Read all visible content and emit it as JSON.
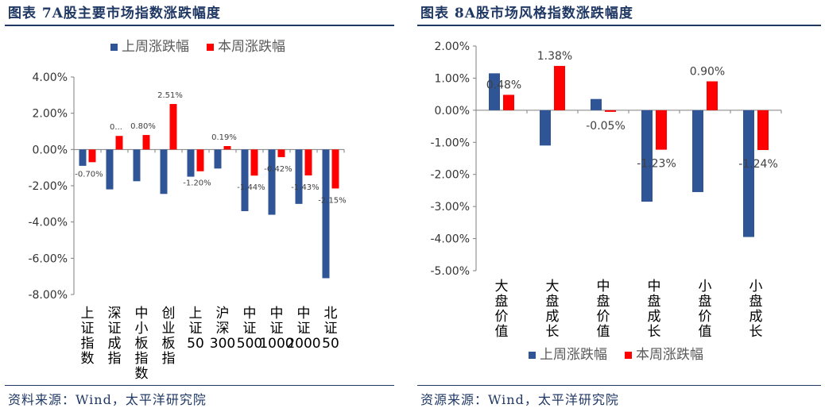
{
  "figures": [
    {
      "title": "图表 7A股主要市场指数涨跌幅度",
      "source": "资料来源：Wind，太平洋研究院"
    },
    {
      "title": "图表 8A股市场风格指数涨跌幅度",
      "source": "资源来源：Wind，太平洋研究院"
    }
  ],
  "chart_data": [
    {
      "type": "bar",
      "categories": [
        "上证指数",
        "深证成指",
        "中小板指数",
        "创业板指",
        "上证50",
        "沪深300",
        "中证500",
        "中证1000",
        "中证2000",
        "北证50"
      ],
      "series": [
        {
          "name": "上周涨跌幅",
          "values": [
            -0.9,
            -2.2,
            -1.75,
            -2.45,
            -1.5,
            -1.05,
            -3.4,
            -3.6,
            -3.0,
            -7.1
          ],
          "color": "#2f5597"
        },
        {
          "name": "本周涨跌幅",
          "values": [
            -0.7,
            0.75,
            0.8,
            2.51,
            -1.2,
            0.19,
            -1.44,
            -0.42,
            -1.43,
            -2.15
          ],
          "color": "#ff0000"
        }
      ],
      "data_labels": [
        "-0.70%",
        "0...",
        "0.80%",
        "2.51%",
        "-1.20%",
        "0.19%",
        "-1.44%",
        "-0.42%",
        "-1.43%",
        "-2.15%"
      ],
      "ylim": [
        -8,
        4
      ],
      "yticks": [
        "4.00%",
        "2.00%",
        "0.00%",
        "-2.00%",
        "-4.00%",
        "-6.00%",
        "-8.00%"
      ],
      "legend": "top",
      "grid": false
    },
    {
      "type": "bar",
      "categories": [
        "大盘价值",
        "大盘成长",
        "中盘价值",
        "中盘成长",
        "小盘价值",
        "小盘成长"
      ],
      "series": [
        {
          "name": "上周涨跌幅",
          "values": [
            1.15,
            -1.1,
            0.35,
            -2.85,
            -2.55,
            -3.95
          ],
          "color": "#2f5597"
        },
        {
          "name": "本周涨跌幅",
          "values": [
            0.48,
            1.38,
            -0.05,
            -1.23,
            0.9,
            -1.24
          ],
          "color": "#ff0000"
        }
      ],
      "data_labels": [
        "0.48%",
        "1.38%",
        "-0.05%",
        "-1.23%",
        "0.90%",
        "-1.24%"
      ],
      "ylim": [
        -5,
        2
      ],
      "yticks": [
        "2.00%",
        "1.00%",
        "0.00%",
        "-1.00%",
        "-2.00%",
        "-3.00%",
        "-4.00%",
        "-5.00%"
      ],
      "legend": "bottom",
      "grid": false
    }
  ]
}
